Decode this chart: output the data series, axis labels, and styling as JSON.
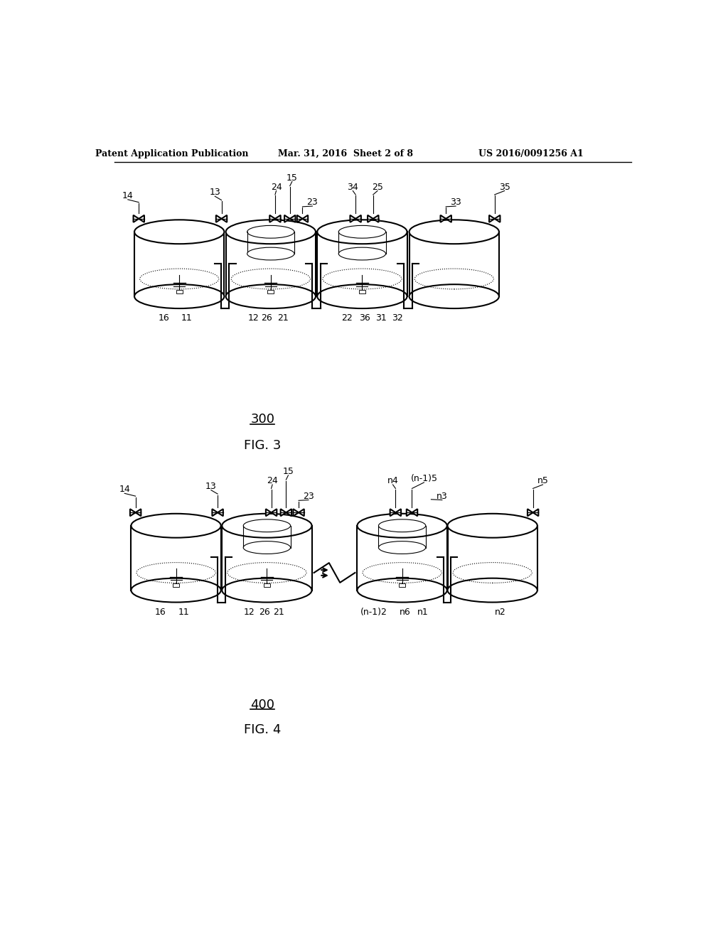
{
  "background_color": "#ffffff",
  "header_left": "Patent Application Publication",
  "header_center": "Mar. 31, 2016  Sheet 2 of 8",
  "header_right": "US 2016/0091256 A1",
  "fig3_label": "300",
  "fig3_caption": "FIG. 3",
  "fig4_label": "400",
  "fig4_caption": "FIG. 4",
  "line_color": "#000000",
  "lw": 1.5,
  "lw_thin": 0.8
}
